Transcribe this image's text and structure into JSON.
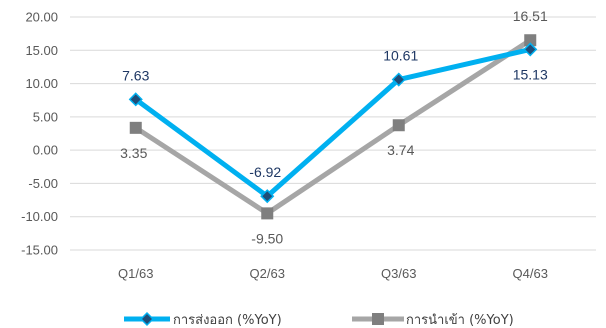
{
  "chart_data": {
    "type": "line",
    "categories": [
      "Q1/63",
      "Q2/63",
      "Q3/63",
      "Q4/63"
    ],
    "ylim": [
      -15,
      20
    ],
    "y_ticks": [
      "20.00",
      "15.00",
      "10.00",
      "5.00",
      "0.00",
      "-5.00",
      "-10.00",
      "-15.00"
    ],
    "grid": true,
    "legend_position": "bottom",
    "series": [
      {
        "name": "การส่งออก (%YoY)",
        "values": [
          7.63,
          -6.92,
          10.61,
          15.13
        ],
        "labels": [
          "7.63",
          "-6.92",
          "10.61",
          "15.13"
        ],
        "color": "#00B0F0",
        "label_color": "#1F3864",
        "marker": "diamond"
      },
      {
        "name": "การนำเข้า (%YoY)",
        "values": [
          3.35,
          -9.5,
          3.74,
          16.51
        ],
        "labels": [
          "3.35",
          "-9.50",
          "3.74",
          "16.51"
        ],
        "color": "#A6A6A6",
        "label_color": "#595959",
        "marker": "square"
      }
    ]
  }
}
